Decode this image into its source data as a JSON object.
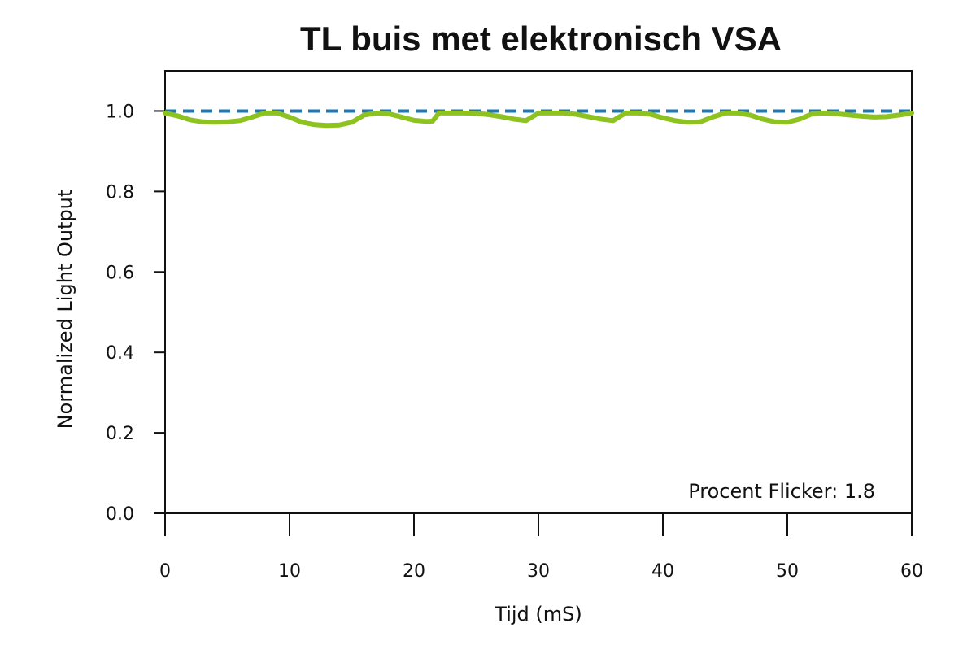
{
  "chart_data": {
    "type": "line",
    "title": "TL buis met elektronisch VSA",
    "xlabel": "Tijd (mS)",
    "ylabel": "Normalized Light Output",
    "xlim": [
      0,
      60
    ],
    "ylim": [
      0.0,
      1.1
    ],
    "xticks": [
      0,
      10,
      20,
      30,
      40,
      50,
      60
    ],
    "xtick_labels": [
      "0",
      "10",
      "20",
      "30",
      "40",
      "50",
      "60"
    ],
    "yticks": [
      0.0,
      0.2,
      0.4,
      0.6,
      0.8,
      1.0
    ],
    "ytick_labels": [
      "0.0",
      "0.2",
      "0.4",
      "0.6",
      "0.8",
      "1.0"
    ],
    "annotation": "Procent Flicker: 1.8",
    "reference_line": {
      "y": 1.0,
      "style": "dashed",
      "color": "#1f77b4"
    },
    "series": [
      {
        "color": "#8dc21f",
        "x": [
          0,
          1,
          2,
          3,
          4,
          5,
          6,
          7,
          8,
          9,
          10,
          11,
          12,
          13,
          14,
          15,
          16,
          17,
          18,
          19,
          20,
          21,
          21.5,
          22,
          23,
          24,
          25,
          26,
          27,
          28,
          29,
          30,
          31,
          32,
          33,
          34,
          35,
          36,
          37,
          38,
          39,
          40,
          41,
          42,
          43,
          44,
          45,
          46,
          47,
          48,
          49,
          50,
          51,
          52,
          53,
          54,
          55,
          56,
          57,
          58,
          59,
          60
        ],
        "y": [
          0.995,
          0.988,
          0.978,
          0.973,
          0.972,
          0.973,
          0.976,
          0.985,
          0.995,
          0.995,
          0.985,
          0.972,
          0.966,
          0.964,
          0.965,
          0.972,
          0.99,
          0.995,
          0.993,
          0.985,
          0.977,
          0.974,
          0.975,
          0.995,
          0.995,
          0.995,
          0.994,
          0.991,
          0.986,
          0.98,
          0.976,
          0.995,
          0.995,
          0.995,
          0.992,
          0.986,
          0.98,
          0.976,
          0.995,
          0.995,
          0.992,
          0.983,
          0.976,
          0.972,
          0.973,
          0.985,
          0.995,
          0.995,
          0.99,
          0.98,
          0.973,
          0.972,
          0.98,
          0.993,
          0.995,
          0.993,
          0.99,
          0.987,
          0.985,
          0.986,
          0.99,
          0.995
        ]
      }
    ]
  }
}
